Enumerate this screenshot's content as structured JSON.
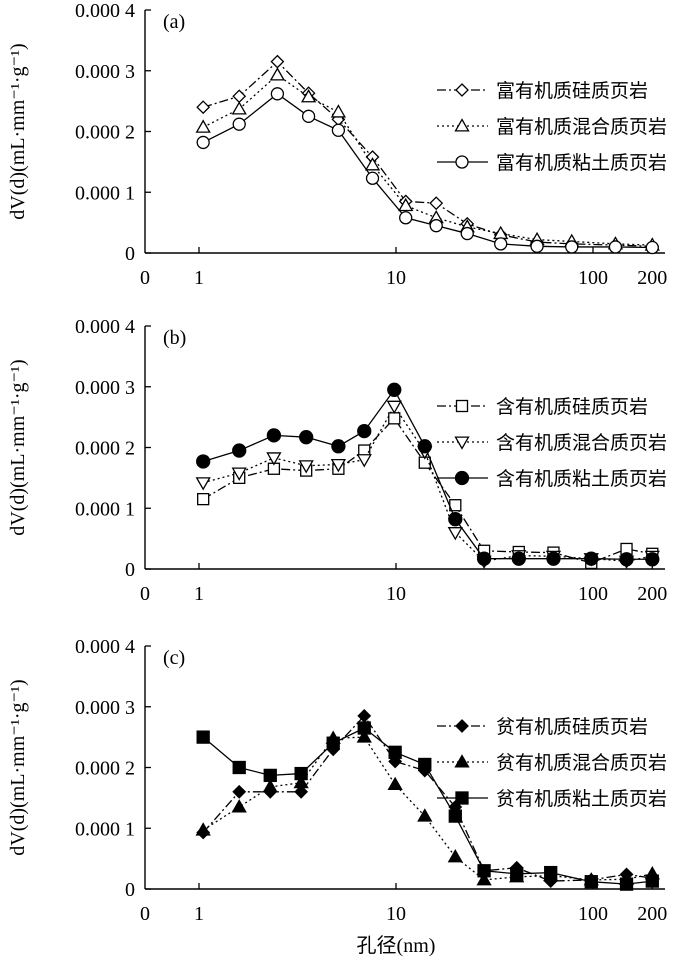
{
  "figure": {
    "xlabel": "孔径(nm)"
  },
  "chart_data": [
    {
      "type": "line",
      "panel_label": "(a)",
      "ylabel": "dV(d)(mL·mm⁻¹·g⁻¹)",
      "x_scale": "log",
      "x_tick_labels": [
        "0",
        "1",
        "10",
        "100",
        "200"
      ],
      "y_tick_labels": [
        "0.000 4",
        "0.000 3",
        "0.000 2",
        "0.000 1",
        "0"
      ],
      "ylim": [
        0,
        0.0004
      ],
      "legend_position": "right",
      "series": [
        {
          "name": "富有机质硅质页岩",
          "marker": "diamond-open",
          "line": "dashdot",
          "x": [
            1.05,
            1.6,
            2.5,
            3.6,
            5.1,
            7.6,
            11.2,
            16,
            23,
            34,
            52,
            78,
            130,
            200
          ],
          "y": [
            0.00024,
            0.000258,
            0.000315,
            0.000263,
            0.00022,
            0.000158,
            8.5e-05,
            8.2e-05,
            4.8e-05,
            3e-05,
            1.8e-05,
            1.5e-05,
            1.3e-05,
            1.1e-05
          ]
        },
        {
          "name": "富有机质混合质页岩",
          "marker": "triangle-open",
          "line": "dotted",
          "x": [
            1.05,
            1.6,
            2.5,
            3.6,
            5.1,
            7.6,
            11.2,
            16,
            23,
            34,
            52,
            78,
            130,
            200
          ],
          "y": [
            0.000207,
            0.000237,
            0.000293,
            0.000257,
            0.000232,
            0.000145,
            7.8e-05,
            5.8e-05,
            4.3e-05,
            3.2e-05,
            2.2e-05,
            1.9e-05,
            1.5e-05,
            1.3e-05
          ]
        },
        {
          "name": "富有机质粘土质页岩",
          "marker": "circle-open",
          "line": "solid",
          "x": [
            1.05,
            1.6,
            2.5,
            3.6,
            5.1,
            7.6,
            11.2,
            16,
            23,
            34,
            52,
            78,
            130,
            200
          ],
          "y": [
            0.000182,
            0.000212,
            0.000262,
            0.000225,
            0.000202,
            0.000123,
            5.8e-05,
            4.5e-05,
            3.2e-05,
            1.5e-05,
            1.1e-05,
            1e-05,
            1e-05,
            9e-06
          ]
        }
      ]
    },
    {
      "type": "line",
      "panel_label": "(b)",
      "ylabel": "dV(d)(mL·mm⁻¹·g⁻¹)",
      "x_scale": "log",
      "x_tick_labels": [
        "0",
        "1",
        "10",
        "100",
        "200"
      ],
      "y_tick_labels": [
        "0.000 4",
        "0.000 3",
        "0.000 2",
        "0.000 1",
        "0"
      ],
      "ylim": [
        0,
        0.0004
      ],
      "legend_position": "right",
      "series": [
        {
          "name": "含有机质硅质页岩",
          "marker": "square-open",
          "line": "dashdot",
          "x": [
            1.05,
            1.6,
            2.4,
            3.5,
            5.1,
            6.9,
            9.8,
            14,
            20,
            28,
            42,
            63,
            98,
            148,
            200
          ],
          "y": [
            0.000115,
            0.00015,
            0.000165,
            0.000162,
            0.000165,
            0.000195,
            0.000248,
            0.000175,
            0.000105,
            3e-05,
            2.8e-05,
            2.7e-05,
            1e-05,
            3.3e-05,
            2.5e-05
          ]
        },
        {
          "name": "含有机质混合质页岩",
          "marker": "tri-down-open",
          "line": "dotted",
          "x": [
            1.05,
            1.6,
            2.4,
            3.5,
            5.1,
            6.9,
            9.8,
            14,
            20,
            28,
            42,
            63,
            98,
            148,
            200
          ],
          "y": [
            0.000142,
            0.000158,
            0.000183,
            0.00017,
            0.000172,
            0.00018,
            0.000268,
            0.000193,
            6e-05,
            1.3e-05,
            2.2e-05,
            2.1e-05,
            1.7e-05,
            1.3e-05,
            2.1e-05
          ]
        },
        {
          "name": "含有机质粘土质页岩",
          "marker": "circle-filled",
          "line": "solid",
          "x": [
            1.05,
            1.6,
            2.4,
            3.5,
            5.1,
            6.9,
            9.8,
            14,
            20,
            28,
            42,
            63,
            98,
            148,
            200
          ],
          "y": [
            0.000177,
            0.000195,
            0.00022,
            0.000217,
            0.000202,
            0.000227,
            0.000295,
            0.000202,
            8.2e-05,
            1.7e-05,
            1.7e-05,
            1.7e-05,
            1.7e-05,
            1.6e-05,
            1.6e-05
          ]
        }
      ]
    },
    {
      "type": "line",
      "panel_label": "(c)",
      "ylabel": "dV(d)(mL·mm⁻¹·g⁻¹)",
      "x_scale": "log",
      "x_tick_labels": [
        "0",
        "1",
        "10",
        "100",
        "200"
      ],
      "y_tick_labels": [
        "0.000 4",
        "0.000 3",
        "0.000 2",
        "0.000 1",
        "0"
      ],
      "ylim": [
        0,
        0.0004
      ],
      "legend_position": "right",
      "series": [
        {
          "name": "贫有机质硅质页岩",
          "marker": "diamond-filled",
          "line": "dashdot",
          "x": [
            1.05,
            1.6,
            2.3,
            3.3,
            4.8,
            6.9,
            9.9,
            14,
            20,
            28,
            41,
            61,
            98,
            148,
            200
          ],
          "y": [
            9.3e-05,
            0.00016,
            0.00016,
            0.00016,
            0.00023,
            0.000285,
            0.00021,
            0.000195,
            0.000135,
            3e-05,
            3.5e-05,
            1.3e-05,
            1.5e-05,
            2.4e-05,
            1.8e-05
          ]
        },
        {
          "name": "贫有机质混合质页岩",
          "marker": "triangle-filled",
          "line": "dotted",
          "x": [
            1.05,
            1.6,
            2.3,
            3.3,
            4.8,
            6.9,
            9.9,
            14,
            20,
            28,
            41,
            61,
            98,
            148,
            200
          ],
          "y": [
            9.7e-05,
            0.000135,
            0.000168,
            0.000175,
            0.000248,
            0.00025,
            0.000172,
            0.00012,
            5.3e-05,
            1.5e-05,
            2e-05,
            2.2e-05,
            1.5e-05,
            1.6e-05,
            2.5e-05
          ]
        },
        {
          "name": "贫有机质粘土质页岩",
          "marker": "square-filled",
          "line": "solid",
          "x": [
            1.05,
            1.6,
            2.3,
            3.3,
            4.8,
            6.9,
            9.9,
            14,
            20,
            28,
            41,
            61,
            98,
            148,
            200
          ],
          "y": [
            0.00025,
            0.0002,
            0.000187,
            0.00019,
            0.00024,
            0.000265,
            0.000225,
            0.000205,
            0.00012,
            3e-05,
            2.5e-05,
            2.7e-05,
            1.2e-05,
            8e-06,
            1.3e-05
          ]
        }
      ]
    }
  ]
}
